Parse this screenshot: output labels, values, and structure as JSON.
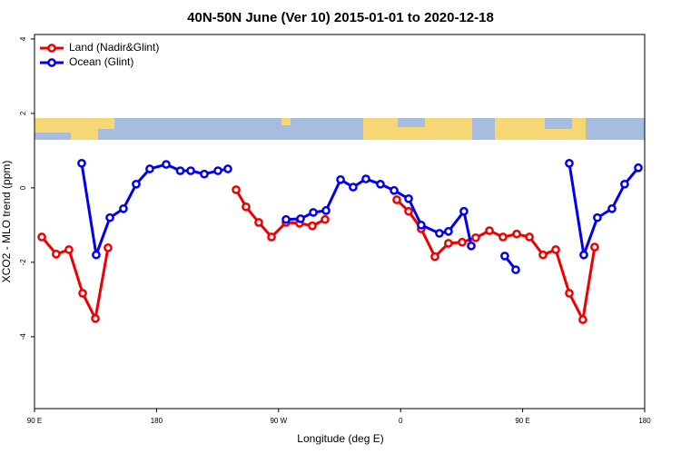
{
  "chart_data": {
    "type": "line",
    "title": "40N-50N June (Ver 10)   2015-01-01 to 2020-12-18",
    "x_label": "Longitude (deg E)",
    "y_label": "XCO2 - MLO trend (ppm)",
    "xlim": [
      90,
      540
    ],
    "xticks": [
      {
        "value": 90,
        "label": "90 E"
      },
      180,
      {
        "value": 270,
        "label": "90 W"
      },
      {
        "value": 360,
        "label": "0"
      },
      {
        "value": 450,
        "label": "90 E"
      },
      {
        "value": 540,
        "label": "180"
      }
    ],
    "ylim": [
      -5.93,
      4.12
    ],
    "yticks": [
      -4,
      -2,
      0,
      2,
      4
    ],
    "legend": "top-left",
    "series": [
      {
        "name": "Land (Nadir&Glint)",
        "color": "#ee0000",
        "x": [
          95.4,
          106,
          115.4,
          125.5,
          134.9,
          144.2,
          null,
          238.7,
          246,
          255.4,
          264.8,
          275.5,
          285.5,
          294.9,
          304.3,
          null,
          357.2,
          365.9,
          375.2,
          385.3,
          395.3,
          405.4,
          415.4,
          425.5,
          435.5,
          445.6,
          455,
          465,
          474.4,
          484.4,
          494.4,
          503.1
        ],
        "values": [
          -1.32,
          -1.78,
          -1.66,
          -2.83,
          -3.51,
          -1.61,
          null,
          -0.05,
          -0.51,
          -0.93,
          -1.32,
          -0.93,
          -0.95,
          -1.02,
          -0.85,
          null,
          -0.32,
          -0.63,
          -1.1,
          -1.85,
          -1.49,
          -1.46,
          -1.34,
          -1.15,
          -1.32,
          -1.24,
          -1.32,
          -1.8,
          -1.66,
          -2.83,
          -3.54,
          -1.59
        ]
      },
      {
        "name": "Ocean (Glint)",
        "color": "#0000ee",
        "x": [
          124.8,
          135.5,
          145.6,
          155.6,
          165,
          175,
          187.1,
          197.5,
          205.2,
          215.2,
          225.3,
          232.6,
          null,
          275.5,
          286.2,
          295.6,
          305,
          315.7,
          325,
          334.4,
          345.1,
          355.2,
          365.9,
          375.2,
          388.6,
          395.3,
          406.7,
          412.1,
          null,
          436.8,
          444.9,
          null,
          484.4,
          495.1,
          505.1,
          515.9,
          525.2,
          535.3
        ],
        "values": [
          0.66,
          -1.8,
          -0.8,
          -0.56,
          0.1,
          0.51,
          0.63,
          0.46,
          0.46,
          0.37,
          0.46,
          0.51,
          null,
          -0.85,
          -0.83,
          -0.66,
          -0.61,
          0.22,
          0.02,
          0.24,
          0.1,
          -0.07,
          -0.29,
          -1.0,
          -1.22,
          -1.17,
          -0.63,
          -1.56,
          null,
          -1.83,
          -2.2,
          null,
          0.66,
          -1.8,
          -0.8,
          -0.56,
          0.1,
          0.54
        ]
      }
    ]
  }
}
